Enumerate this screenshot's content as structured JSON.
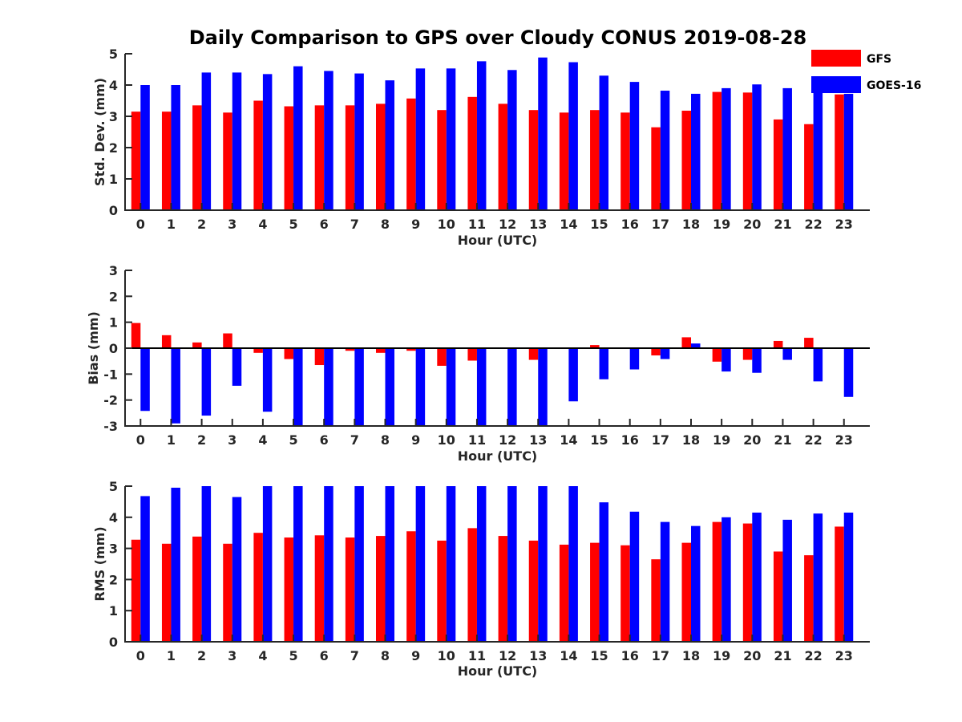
{
  "figure": {
    "title": "Daily Comparison to GPS over Cloudy CONUS 2019-08-28"
  },
  "legend": {
    "placement": "top-right",
    "entries": [
      {
        "label": "GFS",
        "color": "#ff0000"
      },
      {
        "label": "GOES-16",
        "color": "#0000ff"
      }
    ]
  },
  "chart_data": [
    {
      "type": "bar",
      "xlabel": "Hour (UTC)",
      "ylabel": "Std. Dev. (mm)",
      "ylim": [
        0,
        5
      ],
      "yticks": [
        0,
        1,
        2,
        3,
        4,
        5
      ],
      "categories": [
        "0",
        "1",
        "2",
        "3",
        "4",
        "5",
        "6",
        "7",
        "8",
        "9",
        "10",
        "11",
        "12",
        "13",
        "14",
        "15",
        "16",
        "17",
        "18",
        "19",
        "20",
        "21",
        "22",
        "23"
      ],
      "series": [
        {
          "name": "GFS",
          "color": "#ff0000",
          "values": [
            3.15,
            3.15,
            3.35,
            3.12,
            3.5,
            3.32,
            3.35,
            3.35,
            3.4,
            3.57,
            3.2,
            3.62,
            3.4,
            3.2,
            3.12,
            3.2,
            3.12,
            2.65,
            3.18,
            3.78,
            3.76,
            2.9,
            2.75,
            3.7
          ]
        },
        {
          "name": "GOES-16",
          "color": "#0000ff",
          "values": [
            4.0,
            4.0,
            4.4,
            4.4,
            4.35,
            4.6,
            4.45,
            4.37,
            4.15,
            4.53,
            4.53,
            4.76,
            4.48,
            4.88,
            4.73,
            4.3,
            4.1,
            3.82,
            3.72,
            3.9,
            4.02,
            3.9,
            3.93,
            3.72
          ]
        }
      ]
    },
    {
      "type": "bar",
      "xlabel": "Hour (UTC)",
      "ylabel": "Bias (mm)",
      "ylim": [
        -3,
        3
      ],
      "yticks": [
        -3,
        -2,
        -1,
        0,
        1,
        2,
        3
      ],
      "categories": [
        "0",
        "1",
        "2",
        "3",
        "4",
        "5",
        "6",
        "7",
        "8",
        "9",
        "10",
        "11",
        "12",
        "13",
        "14",
        "15",
        "16",
        "17",
        "18",
        "19",
        "20",
        "21",
        "22",
        "23"
      ],
      "series": [
        {
          "name": "GFS",
          "color": "#ff0000",
          "values": [
            0.97,
            0.5,
            0.22,
            0.57,
            -0.18,
            -0.42,
            -0.65,
            -0.1,
            -0.18,
            -0.1,
            -0.68,
            -0.48,
            0.0,
            -0.45,
            0.0,
            0.12,
            0.0,
            -0.28,
            0.42,
            -0.52,
            -0.45,
            0.28,
            0.4,
            0.0
          ]
        },
        {
          "name": "GOES-16",
          "color": "#0000ff",
          "values": [
            -2.42,
            -2.9,
            -2.6,
            -1.45,
            -2.45,
            -3.0,
            -3.0,
            -3.0,
            -3.0,
            -3.0,
            -3.0,
            -3.0,
            -3.0,
            -3.0,
            -2.05,
            -1.2,
            -0.82,
            -0.42,
            0.18,
            -0.9,
            -0.95,
            -0.45,
            -1.28,
            -1.88
          ]
        }
      ]
    },
    {
      "type": "bar",
      "xlabel": "Hour (UTC)",
      "ylabel": "RMS (mm)",
      "ylim": [
        0,
        5
      ],
      "yticks": [
        0,
        1,
        2,
        3,
        4,
        5
      ],
      "categories": [
        "0",
        "1",
        "2",
        "3",
        "4",
        "5",
        "6",
        "7",
        "8",
        "9",
        "10",
        "11",
        "12",
        "13",
        "14",
        "15",
        "16",
        "17",
        "18",
        "19",
        "20",
        "21",
        "22",
        "23"
      ],
      "series": [
        {
          "name": "GFS",
          "color": "#ff0000",
          "values": [
            3.28,
            3.15,
            3.38,
            3.15,
            3.5,
            3.35,
            3.42,
            3.35,
            3.4,
            3.55,
            3.25,
            3.65,
            3.4,
            3.25,
            3.12,
            3.18,
            3.1,
            2.65,
            3.18,
            3.85,
            3.8,
            2.9,
            2.78,
            3.7
          ]
        },
        {
          "name": "GOES-16",
          "color": "#0000ff",
          "values": [
            4.68,
            4.95,
            5.0,
            4.65,
            5.0,
            5.0,
            5.0,
            5.0,
            5.0,
            5.0,
            5.0,
            5.0,
            5.0,
            5.0,
            5.0,
            4.48,
            4.18,
            3.85,
            3.72,
            4.0,
            4.15,
            3.92,
            4.12,
            4.15
          ]
        }
      ]
    }
  ]
}
